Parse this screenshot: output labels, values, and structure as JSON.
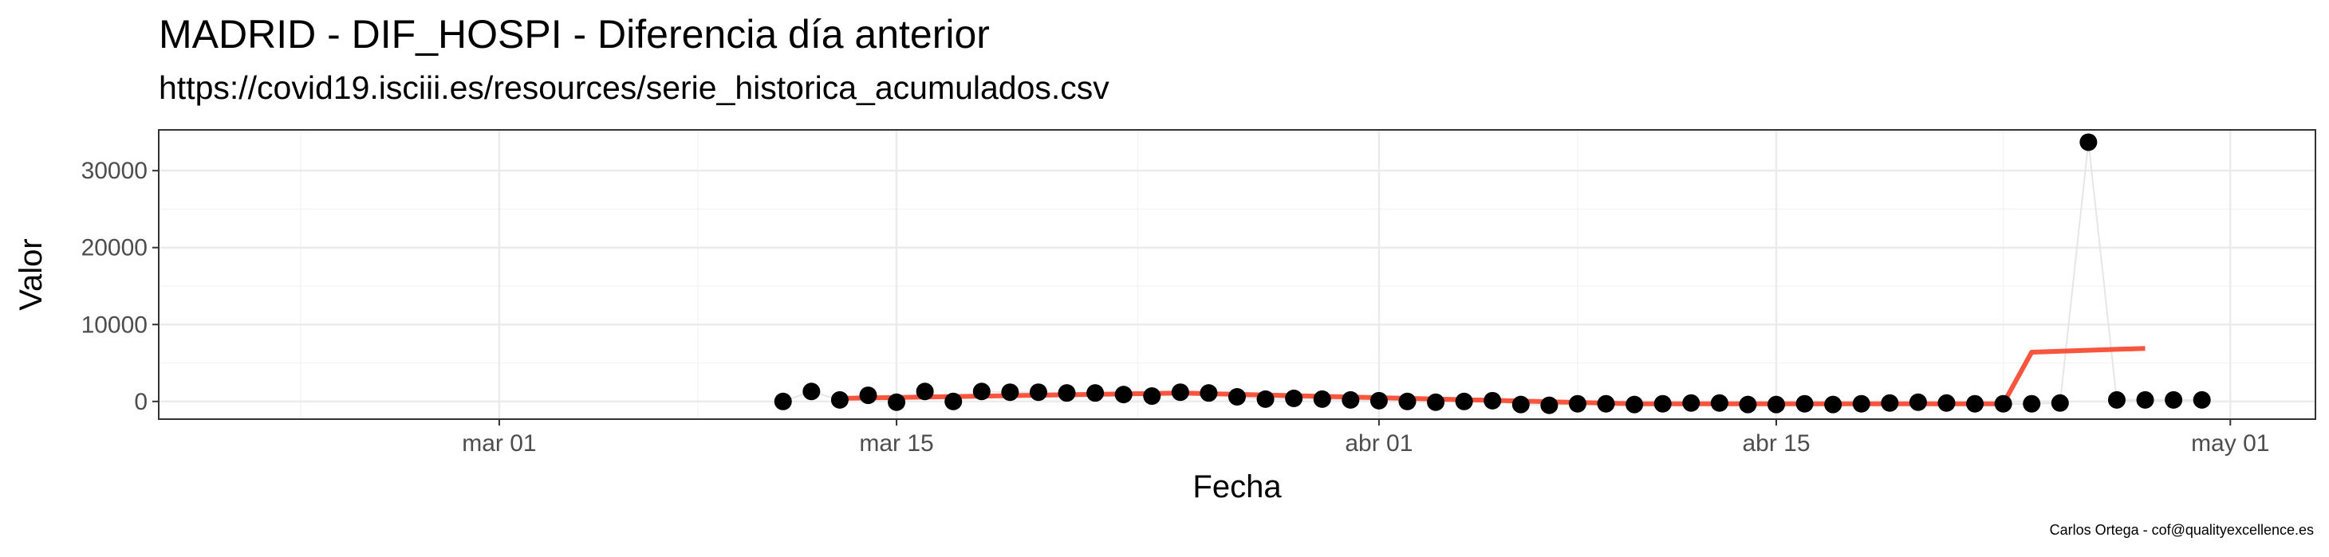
{
  "chart_data": {
    "type": "scatter",
    "title": "MADRID - DIF_HOSPI - Diferencia día anterior",
    "subtitle": "https://covid19.isciii.es/resources/serie_historica_acumulados.csv",
    "caption": "Carlos Ortega - cof@qualityexcellence.es",
    "xlabel": "Fecha",
    "ylabel": "Valor",
    "x_ticks": [
      {
        "date": "2020-03-01",
        "label": "mar 01"
      },
      {
        "date": "2020-03-15",
        "label": "mar 15"
      },
      {
        "date": "2020-04-01",
        "label": "abr 01"
      },
      {
        "date": "2020-04-15",
        "label": "abr 15"
      },
      {
        "date": "2020-05-01",
        "label": "may 01"
      }
    ],
    "y_ticks": [
      0,
      10000,
      20000,
      30000
    ],
    "xlim": [
      "2020-02-18",
      "2020-05-04"
    ],
    "ylim": [
      -2300,
      35300
    ],
    "grid": true,
    "series": [
      {
        "style": "points-with-line",
        "point_color": "#000000",
        "line_color": "#e6e6e6",
        "points": [
          {
            "x": "2020-03-11",
            "y": 0
          },
          {
            "x": "2020-03-12",
            "y": 1300
          },
          {
            "x": "2020-03-13",
            "y": 200
          },
          {
            "x": "2020-03-14",
            "y": 800
          },
          {
            "x": "2020-03-15",
            "y": -100
          },
          {
            "x": "2020-03-16",
            "y": 1300
          },
          {
            "x": "2020-03-17",
            "y": 0
          },
          {
            "x": "2020-03-18",
            "y": 1300
          },
          {
            "x": "2020-03-19",
            "y": 1200
          },
          {
            "x": "2020-03-20",
            "y": 1200
          },
          {
            "x": "2020-03-21",
            "y": 1100
          },
          {
            "x": "2020-03-22",
            "y": 1100
          },
          {
            "x": "2020-03-23",
            "y": 900
          },
          {
            "x": "2020-03-24",
            "y": 700
          },
          {
            "x": "2020-03-25",
            "y": 1200
          },
          {
            "x": "2020-03-26",
            "y": 1100
          },
          {
            "x": "2020-03-27",
            "y": 600
          },
          {
            "x": "2020-03-28",
            "y": 300
          },
          {
            "x": "2020-03-29",
            "y": 400
          },
          {
            "x": "2020-03-30",
            "y": 300
          },
          {
            "x": "2020-03-31",
            "y": 200
          },
          {
            "x": "2020-04-01",
            "y": 100
          },
          {
            "x": "2020-04-02",
            "y": 0
          },
          {
            "x": "2020-04-03",
            "y": -100
          },
          {
            "x": "2020-04-04",
            "y": 0
          },
          {
            "x": "2020-04-05",
            "y": 100
          },
          {
            "x": "2020-04-06",
            "y": -400
          },
          {
            "x": "2020-04-07",
            "y": -500
          },
          {
            "x": "2020-04-08",
            "y": -300
          },
          {
            "x": "2020-04-09",
            "y": -300
          },
          {
            "x": "2020-04-10",
            "y": -400
          },
          {
            "x": "2020-04-11",
            "y": -300
          },
          {
            "x": "2020-04-12",
            "y": -200
          },
          {
            "x": "2020-04-13",
            "y": -200
          },
          {
            "x": "2020-04-14",
            "y": -400
          },
          {
            "x": "2020-04-15",
            "y": -400
          },
          {
            "x": "2020-04-16",
            "y": -300
          },
          {
            "x": "2020-04-17",
            "y": -400
          },
          {
            "x": "2020-04-18",
            "y": -300
          },
          {
            "x": "2020-04-19",
            "y": -200
          },
          {
            "x": "2020-04-20",
            "y": -100
          },
          {
            "x": "2020-04-21",
            "y": -200
          },
          {
            "x": "2020-04-22",
            "y": -300
          },
          {
            "x": "2020-04-23",
            "y": -300
          },
          {
            "x": "2020-04-24",
            "y": -300
          },
          {
            "x": "2020-04-25",
            "y": -200
          },
          {
            "x": "2020-04-26",
            "y": 33700
          },
          {
            "x": "2020-04-27",
            "y": 200
          },
          {
            "x": "2020-04-28",
            "y": 200
          },
          {
            "x": "2020-04-29",
            "y": 200
          },
          {
            "x": "2020-04-30",
            "y": 200
          }
        ]
      },
      {
        "style": "line",
        "color": "#f8553f",
        "points": [
          {
            "x": "2020-03-13",
            "y": 400
          },
          {
            "x": "2020-03-25",
            "y": 1100
          },
          {
            "x": "2020-04-10",
            "y": -300
          },
          {
            "x": "2020-04-23",
            "y": -300
          },
          {
            "x": "2020-04-24",
            "y": 6400
          },
          {
            "x": "2020-04-28",
            "y": 6900
          }
        ]
      }
    ]
  }
}
